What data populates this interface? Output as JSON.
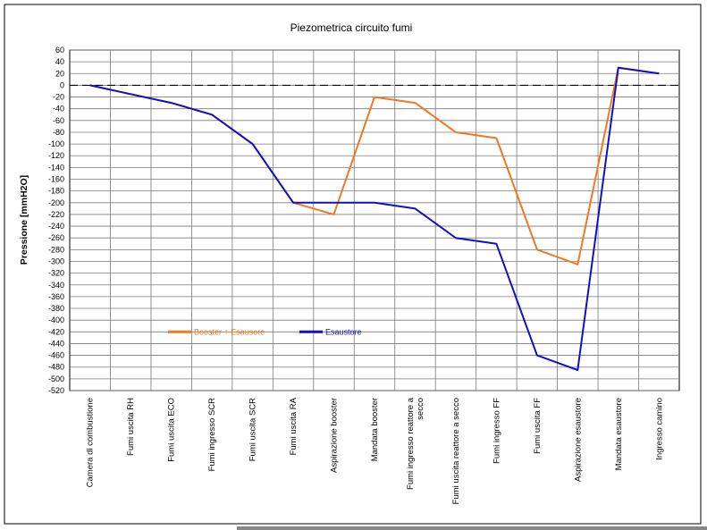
{
  "chart_data": {
    "type": "line",
    "title": "Piezometrica circuito fumi",
    "xlabel": "",
    "ylabel": "Pressione [mmH2O]",
    "ylim": [
      -520,
      60
    ],
    "ytick_step": 20,
    "grid": true,
    "legend_placement": "left-middle",
    "categories": [
      "Camera di combustione",
      "Fumi uscita RH",
      "Fumi uscita ECO",
      "Fumi ingresso SCR",
      "Fumi uscita SCR",
      "Fumi uscita RA",
      "Aspirazione booster",
      "Mandata booster",
      "Fumi ingresso reattore a secco",
      "Fumi uscita reattore a secco",
      "Fumi ingresso FF",
      "Fumi uscita FF",
      "Aspirazione esaustore",
      "Mandata esaustore",
      "Ingresso camino"
    ],
    "category_lines": [
      [
        "Camera di combustione"
      ],
      [
        "Fumi uscita RH"
      ],
      [
        "Fumi uscita ECO"
      ],
      [
        "Fumi ingresso SCR"
      ],
      [
        "Fumi uscita SCR"
      ],
      [
        "Fumi uscita RA"
      ],
      [
        "Aspirazione booster"
      ],
      [
        "Mandata booster"
      ],
      [
        "Fumi ingresso reattore a",
        "secco"
      ],
      [
        "Fumi uscita reattore a secco"
      ],
      [
        "Fumi ingresso FF"
      ],
      [
        "Fumi uscita FF"
      ],
      [
        "Aspirazione esaustore"
      ],
      [
        "Mandata esaustore"
      ],
      [
        "Ingresso camino"
      ]
    ],
    "series": [
      {
        "name": "Booster + Esausore",
        "color": "#f07820",
        "values": [
          0,
          -15,
          -30,
          -50,
          -100,
          -200,
          -220,
          -20,
          -30,
          -80,
          -90,
          -280,
          -305,
          30,
          20
        ]
      },
      {
        "name": "Esaustore",
        "color": "#1010c8",
        "values": [
          0,
          -15,
          -30,
          -50,
          -100,
          -200,
          -200,
          -200,
          -210,
          -260,
          -270,
          -460,
          -485,
          30,
          20
        ]
      }
    ],
    "reference_line": {
      "value": 0,
      "style": "dashed",
      "color": "#000000"
    }
  }
}
